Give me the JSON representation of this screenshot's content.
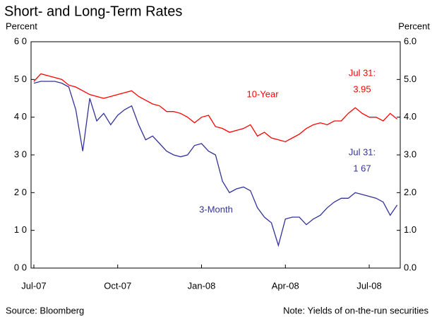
{
  "chart_data": {
    "type": "line",
    "title": "Short- and Long-Term Rates",
    "ylabel": "Percent",
    "y2label": "Percent",
    "source": "Source: Bloomberg",
    "note": "Note: Yields of on-the-run securities",
    "x": [
      0,
      0.25,
      0.5,
      0.75,
      1,
      1.25,
      1.5,
      1.75,
      2,
      2.25,
      2.5,
      2.75,
      3,
      3.25,
      3.5,
      3.75,
      4,
      4.25,
      4.5,
      4.75,
      5,
      5.25,
      5.5,
      5.75,
      6,
      6.25,
      6.5,
      6.75,
      7,
      7.25,
      7.5,
      7.75,
      8,
      8.25,
      8.5,
      8.75,
      9,
      9.25,
      9.5,
      9.75,
      10,
      10.25,
      10.5,
      10.75,
      11,
      11.25,
      11.5,
      11.75,
      12,
      12.25,
      12.5,
      12.75,
      13
    ],
    "xlim": [
      -0.1,
      13.11
    ],
    "xticks": [
      {
        "value": 0,
        "label": "Jul-07"
      },
      {
        "value": 3,
        "label": "Oct-07"
      },
      {
        "value": 6,
        "label": "Jan-08"
      },
      {
        "value": 9,
        "label": "Apr-08"
      },
      {
        "value": 12,
        "label": "Jul-08"
      }
    ],
    "ylim": [
      0,
      6
    ],
    "yticks": [
      {
        "value": 0,
        "label": "0 0"
      },
      {
        "value": 1,
        "label": "1 0"
      },
      {
        "value": 2,
        "label": "2 0"
      },
      {
        "value": 3,
        "label": "3 0"
      },
      {
        "value": 4,
        "label": "4 0"
      },
      {
        "value": 5,
        "label": "5 0"
      },
      {
        "value": 6,
        "label": "6 0"
      }
    ],
    "y2lim": [
      0,
      6
    ],
    "y2ticks": [
      {
        "value": 0,
        "label": "0.0"
      },
      {
        "value": 1,
        "label": "1.0"
      },
      {
        "value": 2,
        "label": "2.0"
      },
      {
        "value": 3,
        "label": "3.0"
      },
      {
        "value": 4,
        "label": "4.0"
      },
      {
        "value": 5,
        "label": "5.0"
      },
      {
        "value": 6,
        "label": "6.0"
      }
    ],
    "series": [
      {
        "name": "10-Year",
        "color": "#ff0000",
        "values": [
          4.95,
          5.15,
          5.1,
          5.05,
          5.0,
          4.85,
          4.8,
          4.7,
          4.6,
          4.55,
          4.5,
          4.55,
          4.6,
          4.65,
          4.7,
          4.55,
          4.45,
          4.35,
          4.3,
          4.15,
          4.15,
          4.1,
          4.0,
          3.85,
          4.0,
          4.05,
          3.75,
          3.7,
          3.6,
          3.65,
          3.7,
          3.8,
          3.5,
          3.6,
          3.45,
          3.4,
          3.35,
          3.45,
          3.55,
          3.7,
          3.8,
          3.85,
          3.8,
          3.9,
          3.9,
          4.1,
          4.25,
          4.1,
          4.0,
          4.0,
          3.9,
          4.1,
          3.95
        ]
      },
      {
        "name": "3-Month",
        "color": "#333399",
        "values": [
          4.9,
          4.95,
          4.95,
          4.95,
          4.9,
          4.8,
          4.2,
          3.1,
          4.5,
          3.9,
          4.1,
          3.8,
          4.05,
          4.2,
          4.3,
          3.8,
          3.4,
          3.5,
          3.3,
          3.1,
          3.0,
          2.95,
          3.0,
          3.25,
          3.3,
          3.1,
          3.0,
          2.3,
          2.0,
          2.1,
          2.15,
          2.05,
          1.6,
          1.35,
          1.2,
          0.6,
          1.3,
          1.35,
          1.35,
          1.15,
          1.3,
          1.4,
          1.6,
          1.75,
          1.85,
          1.85,
          2.0,
          1.95,
          1.9,
          1.85,
          1.75,
          1.4,
          1.67
        ]
      }
    ],
    "annotations": [
      {
        "text": "Jul 31:",
        "color": "#ff0000"
      },
      {
        "text": "3.95",
        "color": "#ff0000"
      },
      {
        "text": "Jul 31:",
        "color": "#333399"
      },
      {
        "text": "1 67",
        "color": "#333399"
      }
    ]
  }
}
